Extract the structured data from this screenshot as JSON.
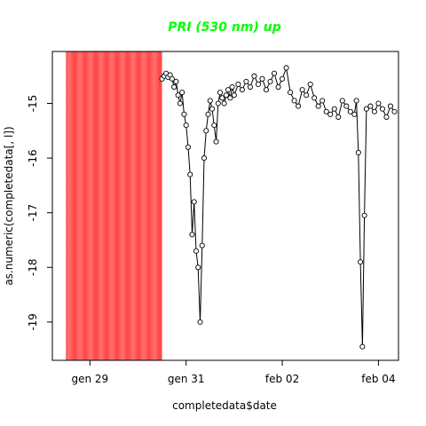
{
  "chart_data": {
    "type": "scatter",
    "title": "PRI (530 nm) up",
    "title_color": "#00ff00",
    "xlabel": "completedata$date",
    "ylabel": "as.numeric(completedata[, l])",
    "x_axis_kind": "date",
    "xlim": [
      "2017-01-28T05:15",
      "2017-02-04T10:00"
    ],
    "ylim": [
      -19.7,
      -14.05
    ],
    "x_ticks": [
      {
        "date": "2017-01-29",
        "label": "gen 29"
      },
      {
        "date": "2017-01-31",
        "label": "gen 31"
      },
      {
        "date": "2017-02-02",
        "label": "feb 02"
      },
      {
        "date": "2017-02-04",
        "label": "feb 04"
      }
    ],
    "y_ticks": [
      -19,
      -18,
      -17,
      -16,
      -15
    ],
    "shaded_region": {
      "start": "2017-01-28T12:00",
      "end": "2017-01-30T12:00",
      "color": "#ff4444"
    },
    "marker": "open-circle",
    "line_color": "#000000",
    "series": [
      {
        "x": [
          "2017-01-30T12:00",
          "2017-01-30T13:00",
          "2017-01-30T14:00",
          "2017-01-30T15:00",
          "2017-01-30T16:00",
          "2017-01-30T17:00",
          "2017-01-30T18:00",
          "2017-01-30T19:00",
          "2017-01-30T20:00",
          "2017-01-30T21:00",
          "2017-01-30T22:00",
          "2017-01-30T23:00",
          "2017-01-31T00:00",
          "2017-01-31T01:00",
          "2017-01-31T02:00",
          "2017-01-31T03:00",
          "2017-01-31T04:00",
          "2017-01-31T05:00",
          "2017-01-31T06:00",
          "2017-01-31T07:00",
          "2017-01-31T08:00",
          "2017-01-31T09:00",
          "2017-01-31T10:00",
          "2017-01-31T11:00",
          "2017-01-31T12:00",
          "2017-01-31T13:00",
          "2017-01-31T14:00",
          "2017-01-31T15:00",
          "2017-01-31T16:00",
          "2017-01-31T17:00",
          "2017-01-31T18:00",
          "2017-01-31T19:00",
          "2017-01-31T20:00",
          "2017-01-31T21:00",
          "2017-01-31T22:00",
          "2017-01-31T23:00",
          "2017-02-01T00:00",
          "2017-02-01T02:00",
          "2017-02-01T04:00",
          "2017-02-01T06:00",
          "2017-02-01T08:00",
          "2017-02-01T10:00",
          "2017-02-01T12:00",
          "2017-02-01T14:00",
          "2017-02-01T16:00",
          "2017-02-01T18:00",
          "2017-02-01T20:00",
          "2017-02-01T22:00",
          "2017-02-02T00:00",
          "2017-02-02T02:00",
          "2017-02-02T04:00",
          "2017-02-02T06:00",
          "2017-02-02T08:00",
          "2017-02-02T10:00",
          "2017-02-02T12:00",
          "2017-02-02T14:00",
          "2017-02-02T16:00",
          "2017-02-02T18:00",
          "2017-02-02T20:00",
          "2017-02-02T22:00",
          "2017-02-03T00:00",
          "2017-02-03T02:00",
          "2017-02-03T04:00",
          "2017-02-03T06:00",
          "2017-02-03T08:00",
          "2017-02-03T10:00",
          "2017-02-03T12:00",
          "2017-02-03T13:00",
          "2017-02-03T14:00",
          "2017-02-03T15:00",
          "2017-02-03T16:00",
          "2017-02-03T17:00",
          "2017-02-03T18:00",
          "2017-02-03T20:00",
          "2017-02-03T22:00",
          "2017-02-04T00:00",
          "2017-02-04T02:00",
          "2017-02-04T04:00",
          "2017-02-04T06:00",
          "2017-02-04T08:00"
        ],
        "y": [
          -14.55,
          -14.5,
          -14.45,
          -14.52,
          -14.48,
          -14.55,
          -14.7,
          -14.6,
          -14.85,
          -15.0,
          -14.8,
          -15.2,
          -15.4,
          -15.8,
          -16.3,
          -17.4,
          -16.8,
          -17.7,
          -18.0,
          -19.0,
          -17.6,
          -16.0,
          -15.5,
          -15.2,
          -14.95,
          -15.1,
          -15.4,
          -15.7,
          -15.0,
          -14.8,
          -14.9,
          -15.0,
          -14.85,
          -14.75,
          -14.9,
          -14.7,
          -14.85,
          -14.65,
          -14.75,
          -14.6,
          -14.7,
          -14.5,
          -14.65,
          -14.55,
          -14.75,
          -14.6,
          -14.45,
          -14.7,
          -14.55,
          -14.35,
          -14.8,
          -14.95,
          -15.05,
          -14.75,
          -14.85,
          -14.65,
          -14.9,
          -15.05,
          -14.95,
          -15.15,
          -15.2,
          -15.1,
          -15.25,
          -14.95,
          -15.05,
          -15.15,
          -15.2,
          -14.95,
          -15.9,
          -17.9,
          -19.45,
          -17.05,
          -15.1,
          -15.05,
          -15.15,
          -15.0,
          -15.1,
          -15.25,
          -15.05,
          -15.15
        ]
      }
    ]
  }
}
